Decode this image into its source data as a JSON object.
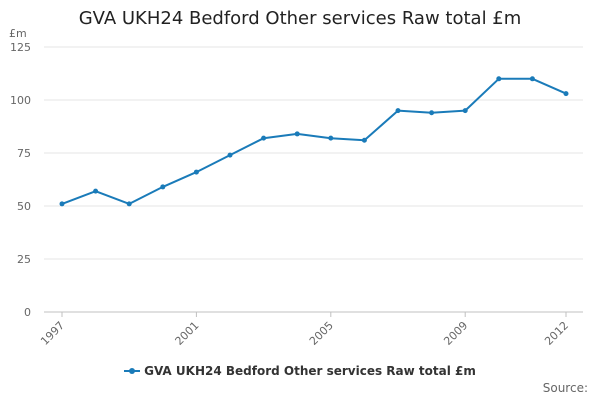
{
  "chart_data": {
    "type": "line",
    "title": "GVA UKH24 Bedford Other services Raw total £m",
    "ylabel": "£m",
    "xlabel": "",
    "ylim": [
      0,
      125
    ],
    "yticks": [
      0,
      25,
      50,
      75,
      100,
      125
    ],
    "x": [
      1997,
      1998,
      1999,
      2000,
      2001,
      2002,
      2003,
      2004,
      2005,
      2006,
      2007,
      2008,
      2009,
      2010,
      2011,
      2012
    ],
    "xtick_labels": [
      "1997",
      "2001",
      "2005",
      "2009",
      "2012"
    ],
    "series": [
      {
        "name": "GVA UKH24 Bedford Other services Raw total £m",
        "color": "#1a7bb9",
        "values": [
          51,
          57,
          51,
          59,
          66,
          74,
          82,
          84,
          82,
          81,
          95,
          94,
          95,
          110,
          110,
          103
        ]
      }
    ],
    "grid": true,
    "legend": "bottom-center"
  },
  "source_label": "Source:"
}
